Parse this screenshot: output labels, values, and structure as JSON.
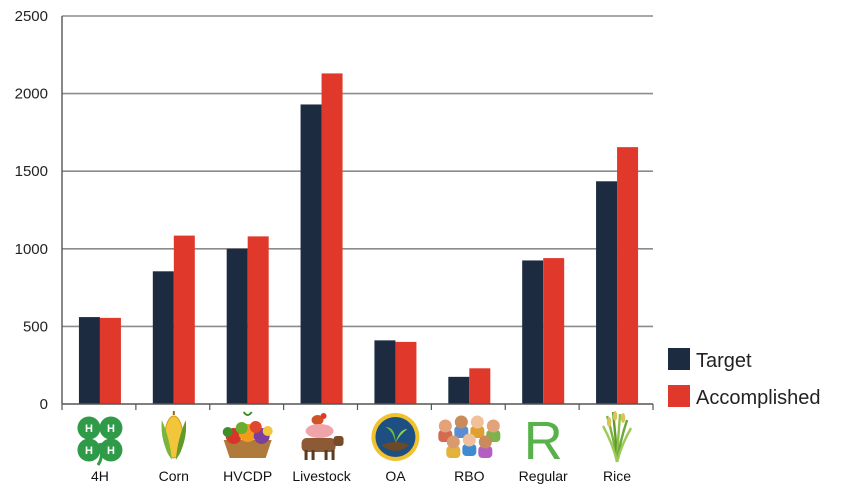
{
  "chart_data": {
    "type": "bar",
    "categories": [
      "4H",
      "Corn",
      "HVCDP",
      "Livestock",
      "OA",
      "RBO",
      "Regular",
      "Rice"
    ],
    "series": [
      {
        "name": "Target",
        "values": [
          560,
          855,
          1000,
          1930,
          410,
          175,
          925,
          1435
        ],
        "color": "#1c2b40"
      },
      {
        "name": "Accomplished",
        "values": [
          555,
          1085,
          1080,
          2130,
          400,
          230,
          940,
          1655
        ],
        "color": "#e0382b"
      }
    ],
    "yticks": [
      0,
      500,
      1000,
      1500,
      2000,
      2500
    ],
    "ylim": [
      0,
      2500
    ],
    "grid": true,
    "legend_position": "bottom-right",
    "icons": [
      "four-leaf-clover-icon",
      "corn-icon",
      "vegetable-basket-icon",
      "livestock-icon",
      "oa-globe-logo-icon",
      "people-group-icon",
      "letter-r-icon",
      "rice-plant-icon"
    ]
  }
}
